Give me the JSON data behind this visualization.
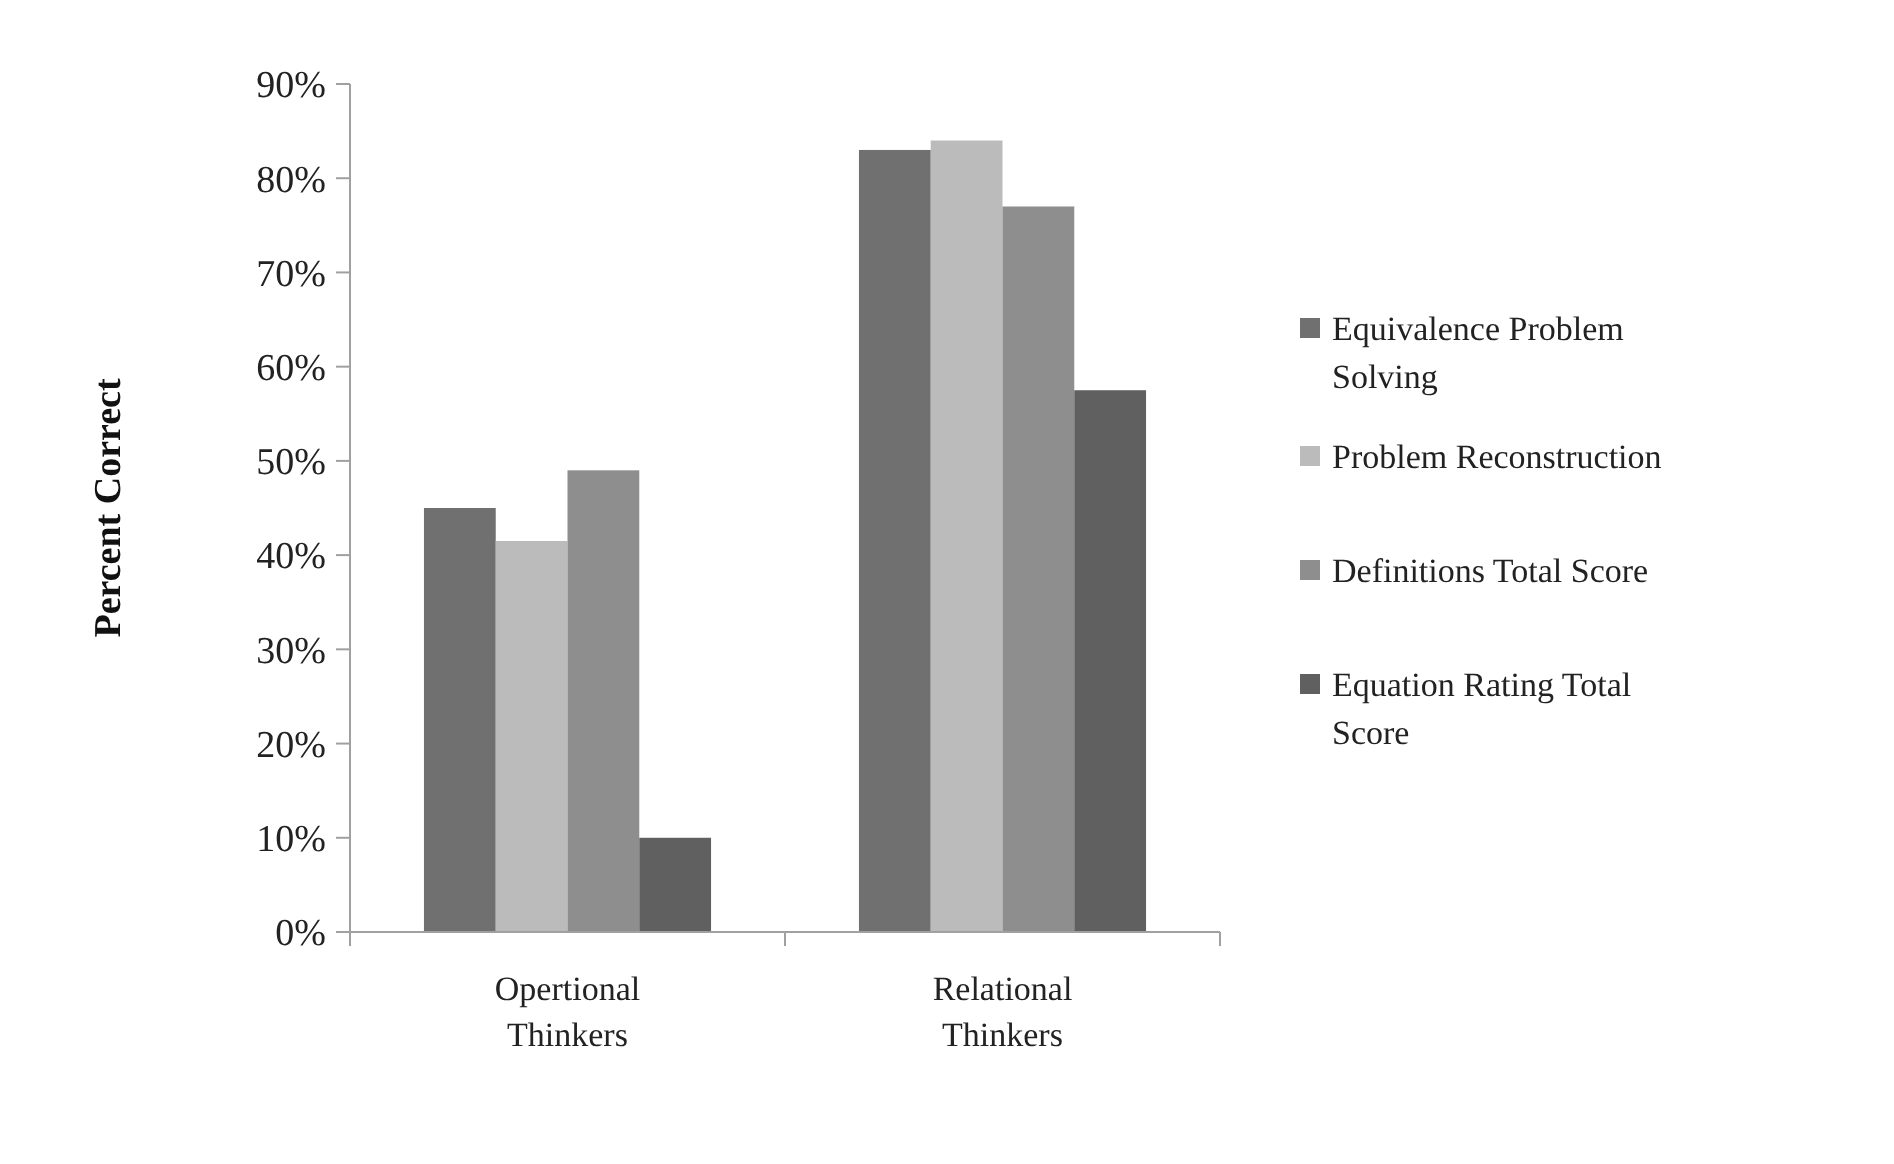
{
  "chart_data": {
    "type": "bar",
    "ylabel": "Percent Correct",
    "categories": [
      "Opertional Thinkers",
      "Relational Thinkers"
    ],
    "series": [
      {
        "name": "Equivalence Problem Solving",
        "color": "#707070",
        "values": [
          45,
          83
        ]
      },
      {
        "name": "Problem Reconstruction",
        "color": "#bbbbbb",
        "values": [
          41.5,
          84
        ]
      },
      {
        "name": "Definitions Total Score",
        "color": "#8e8e8e",
        "values": [
          49,
          77
        ]
      },
      {
        "name": "Equation Rating Total Score",
        "color": "#606060",
        "values": [
          10,
          57.5
        ]
      }
    ],
    "ylim": [
      0,
      90
    ],
    "yticks": [
      {
        "value": 0,
        "label": "0%"
      },
      {
        "value": 10,
        "label": "10%"
      },
      {
        "value": 20,
        "label": "20%"
      },
      {
        "value": 30,
        "label": "30%"
      },
      {
        "value": 40,
        "label": "40%"
      },
      {
        "value": 50,
        "label": "50%"
      },
      {
        "value": 60,
        "label": "60%"
      },
      {
        "value": 70,
        "label": "70%"
      },
      {
        "value": 80,
        "label": "80%"
      },
      {
        "value": 90,
        "label": "90%"
      }
    ],
    "legend": "right",
    "grid": false
  }
}
